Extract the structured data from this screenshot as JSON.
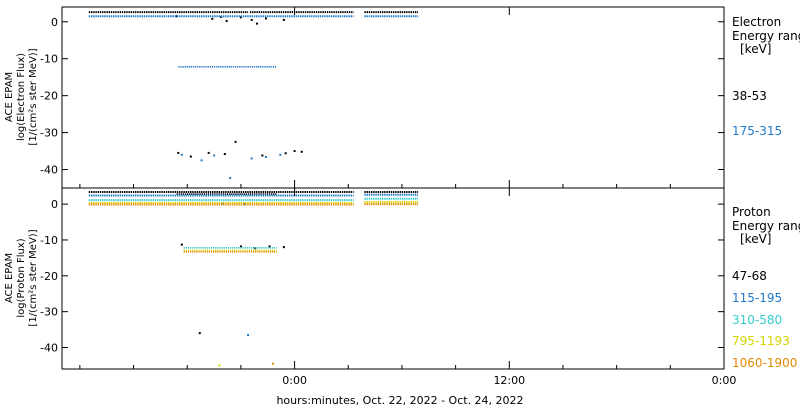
{
  "xaxis": {
    "label": "hours:minutes, Oct. 22, 2022 - Oct. 24, 2022",
    "range_hours": [
      -13,
      24
    ],
    "ticks": [
      {
        "hours": 0,
        "label": "0:00"
      },
      {
        "hours": 12,
        "label": "12:00"
      },
      {
        "hours": 24,
        "label": "0:00"
      }
    ],
    "minor_ticks_hours": [
      -12,
      -9,
      -6,
      -3,
      3,
      6,
      9,
      15,
      18,
      21
    ]
  },
  "chart_data": [
    {
      "type": "scatter",
      "id": "electron",
      "ylabel_lines": [
        "ACE EPAM",
        "log(Electron Flux)",
        "[1/(cm²s ster MeV)]"
      ],
      "ylim": [
        -45,
        4
      ],
      "yticks": [
        0,
        -10,
        -20,
        -30,
        -40
      ],
      "legend_title_lines": [
        "Electron",
        "Energy ranges",
        "[keV]"
      ],
      "series": [
        {
          "name": "38-53",
          "color": "#000000",
          "segments": [
            [
              -11.5,
              3.3,
              2.6
            ],
            [
              3.9,
              6.9,
              2.6
            ]
          ],
          "gaps": [
            [
              -2.6,
              -2.5
            ]
          ],
          "points": [
            [
              -6.6,
              1.5
            ],
            [
              -4.6,
              0.8
            ],
            [
              -4.1,
              1.3
            ],
            [
              -3.8,
              0.2
            ],
            [
              -3.0,
              1.2
            ],
            [
              -2.4,
              0.5
            ],
            [
              -2.1,
              -0.5
            ],
            [
              -1.6,
              0.9
            ],
            [
              -0.6,
              0.5
            ],
            [
              -6.5,
              -35.5
            ],
            [
              -5.8,
              -36.5
            ],
            [
              -4.8,
              -35.5
            ],
            [
              -3.9,
              -35.8
            ],
            [
              -3.3,
              -32.5
            ],
            [
              -1.8,
              -36.2
            ],
            [
              -0.5,
              -35.6
            ],
            [
              0.0,
              -35.0
            ],
            [
              0.4,
              -35.2
            ]
          ]
        },
        {
          "name": "175-315",
          "color": "#1f78c8",
          "segments": [
            [
              -11.5,
              3.3,
              1.5
            ],
            [
              3.9,
              6.9,
              1.5
            ]
          ],
          "band": [
            [
              -6.5,
              -1.0,
              -12.2
            ]
          ],
          "points": [
            [
              -6.3,
              -36.0
            ],
            [
              -5.2,
              -37.5
            ],
            [
              -4.5,
              -36.2
            ],
            [
              -3.6,
              -42.3
            ],
            [
              -2.4,
              -37.0
            ],
            [
              -1.6,
              -36.6
            ],
            [
              -0.8,
              -36.0
            ]
          ]
        }
      ]
    },
    {
      "type": "scatter",
      "id": "proton",
      "ylabel_lines": [
        "ACE EPAM",
        "log(Proton Flux)",
        "[1/(cm²s ster MeV)]"
      ],
      "ylim": [
        -46,
        4.5
      ],
      "yticks": [
        0,
        -10,
        -20,
        -30,
        -40
      ],
      "legend_title_lines": [
        "Proton",
        "Energy ranges",
        "[keV]"
      ],
      "series": [
        {
          "name": "47-68",
          "color": "#000000",
          "segments": [
            [
              -11.5,
              3.3,
              3.4
            ],
            [
              3.9,
              6.9,
              3.4
            ]
          ],
          "band": [
            [
              -6.6,
              -1.0,
              2.8
            ]
          ],
          "points": [
            [
              -6.3,
              -11.3
            ],
            [
              -3.0,
              -11.8
            ],
            [
              -2.2,
              -12.3
            ],
            [
              -1.4,
              -11.8
            ],
            [
              -0.6,
              -12.0
            ],
            [
              -5.3,
              -36.0
            ]
          ]
        },
        {
          "name": "115-195",
          "color": "#1f78c8",
          "segments": [
            [
              -11.5,
              3.3,
              2.4
            ],
            [
              3.9,
              6.9,
              2.6
            ]
          ],
          "points": [
            [
              -4.0,
              0.2
            ],
            [
              -2.8,
              0.0
            ],
            [
              -2.6,
              -36.5
            ]
          ]
        },
        {
          "name": "310-580",
          "color": "#33cccc",
          "segments": [
            [
              -11.5,
              3.3,
              1.1
            ],
            [
              3.9,
              6.9,
              1.5
            ]
          ],
          "band": [
            [
              -6.2,
              -1.0,
              -12.2
            ]
          ],
          "points": []
        },
        {
          "name": "795-1193",
          "color": "#d4d400",
          "segments": [
            [
              -11.5,
              3.3,
              0.3
            ],
            [
              3.9,
              6.9,
              0.6
            ]
          ],
          "band": [
            [
              -6.2,
              -1.0,
              -12.9
            ]
          ],
          "points": [
            [
              -4.2,
              -45.0
            ]
          ]
        },
        {
          "name": "1060-1900",
          "color": "#e08a00",
          "segments": [
            [
              -11.5,
              3.3,
              -0.1
            ],
            [
              3.9,
              6.9,
              0.0
            ]
          ],
          "band": [
            [
              -6.2,
              -1.0,
              -13.3
            ]
          ],
          "points": [
            [
              -1.2,
              -44.5
            ]
          ]
        }
      ]
    }
  ]
}
